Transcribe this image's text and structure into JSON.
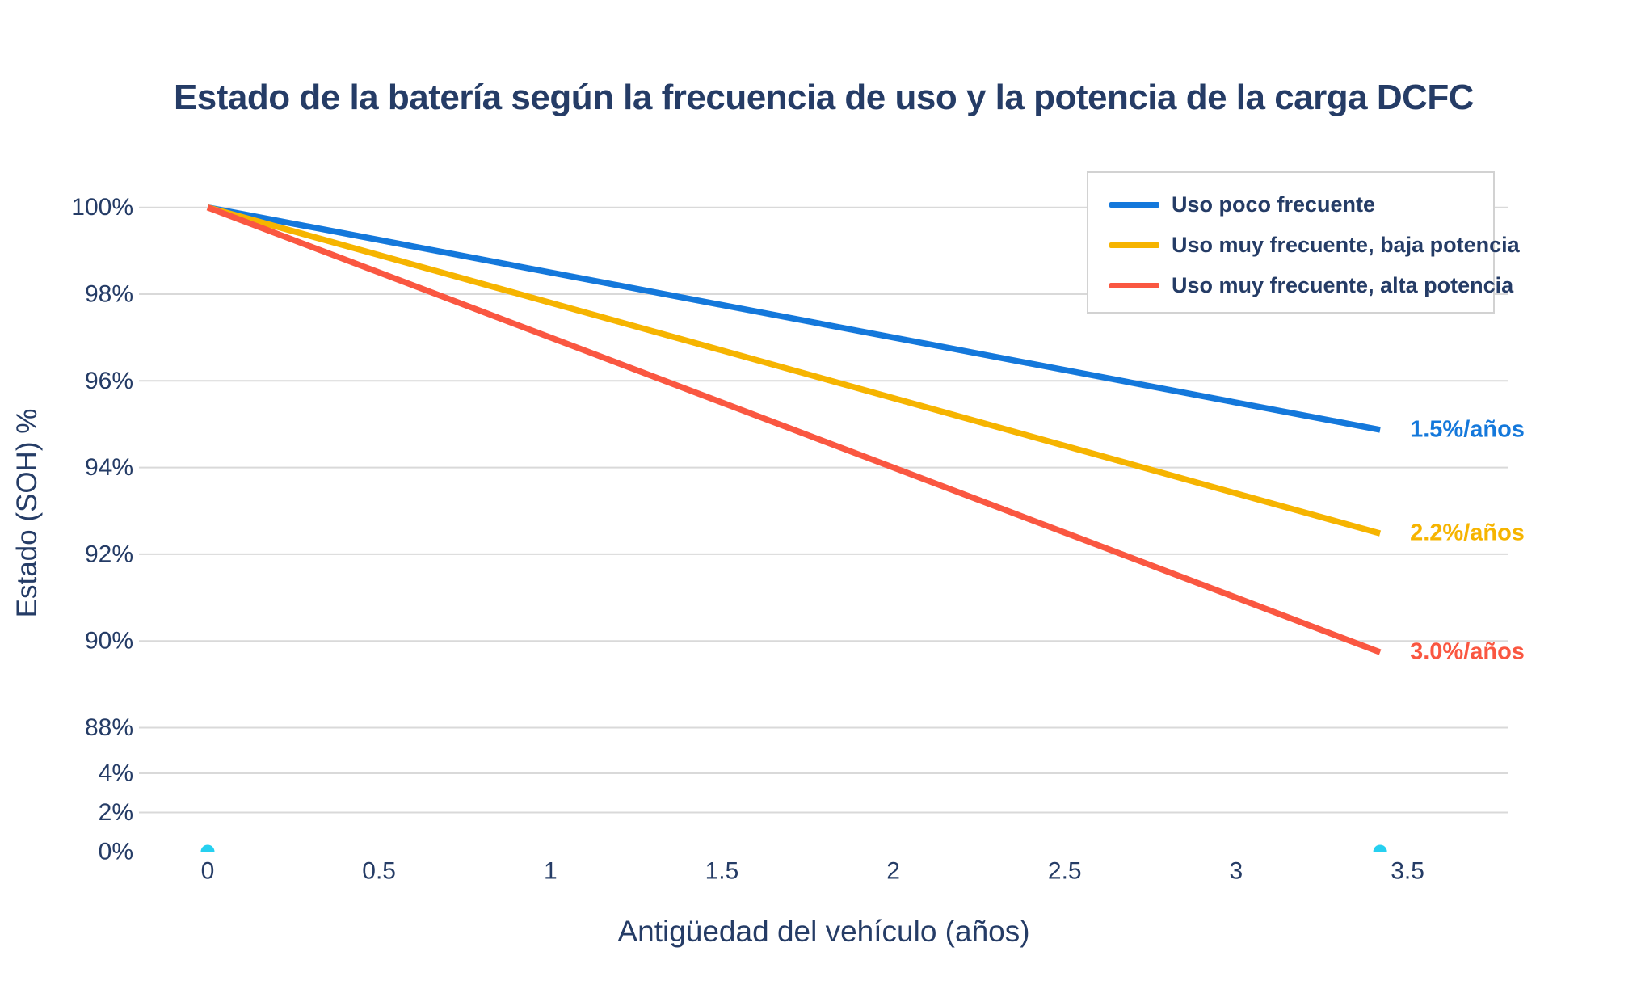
{
  "title": "Estado de la batería según la frecuencia de uso y la potencia de la carga DCFC",
  "colors": {
    "text": "#253c66",
    "background": "#ffffff",
    "gridline": "#d9d9d9",
    "legend_border": "#d2d2d2",
    "series_blue": "#1478db",
    "series_yellow": "#f6b400",
    "series_red": "#fa5741",
    "marker_cyan": "#26d0f0"
  },
  "chart_data": {
    "type": "line",
    "title": "Estado de la batería según la frecuencia de uso y la potencia de la carga DCFC",
    "xlabel": "Antigüedad del vehículo (años)",
    "ylabel": "Estado (SOH) %",
    "grid": true,
    "legend_position": "top-right",
    "x_ticks": [
      "0",
      "0.5",
      "1",
      "1.5",
      "2",
      "2.5",
      "3",
      "3.5"
    ],
    "x_tick_values": [
      0,
      0.5,
      1,
      1.5,
      2,
      2.5,
      3,
      3.5
    ],
    "x_range": [
      -0.2,
      3.79
    ],
    "x_end_years": 3.42,
    "upper_y_axis": {
      "tick_labels": [
        "100%",
        "98%",
        "96%",
        "94%",
        "92%",
        "90%",
        "88%"
      ],
      "tick_values": [
        100,
        98,
        96,
        94,
        92,
        90,
        88
      ],
      "range": [
        88,
        100
      ]
    },
    "lower_y_axis": {
      "tick_labels": [
        "4%",
        "2%",
        "0%"
      ],
      "tick_values": [
        4,
        2,
        0
      ],
      "gridline_values": [
        4,
        2
      ],
      "range": [
        0,
        4
      ]
    },
    "series": [
      {
        "name": "Uso poco frecuente",
        "color": "#1478db",
        "rate_label": "1.5%/años",
        "rate_pct_per_year": 1.5,
        "x": [
          0,
          3.42
        ],
        "y": [
          100,
          94.87
        ]
      },
      {
        "name": "Uso muy frecuente, baja potencia",
        "color": "#f6b400",
        "rate_label": "2.2%/años",
        "rate_pct_per_year": 2.2,
        "x": [
          0,
          3.42
        ],
        "y": [
          100,
          92.48
        ]
      },
      {
        "name": "Uso muy frecuente, alta potencia",
        "color": "#fa5741",
        "rate_label": "3.0%/años",
        "rate_pct_per_year": 3.0,
        "x": [
          0,
          3.42
        ],
        "y": [
          100,
          89.74
        ]
      }
    ],
    "markers": {
      "name": "event-markers",
      "color": "#26d0f0",
      "axis": "lower",
      "points": [
        [
          0,
          0
        ],
        [
          3.42,
          0
        ]
      ]
    }
  }
}
